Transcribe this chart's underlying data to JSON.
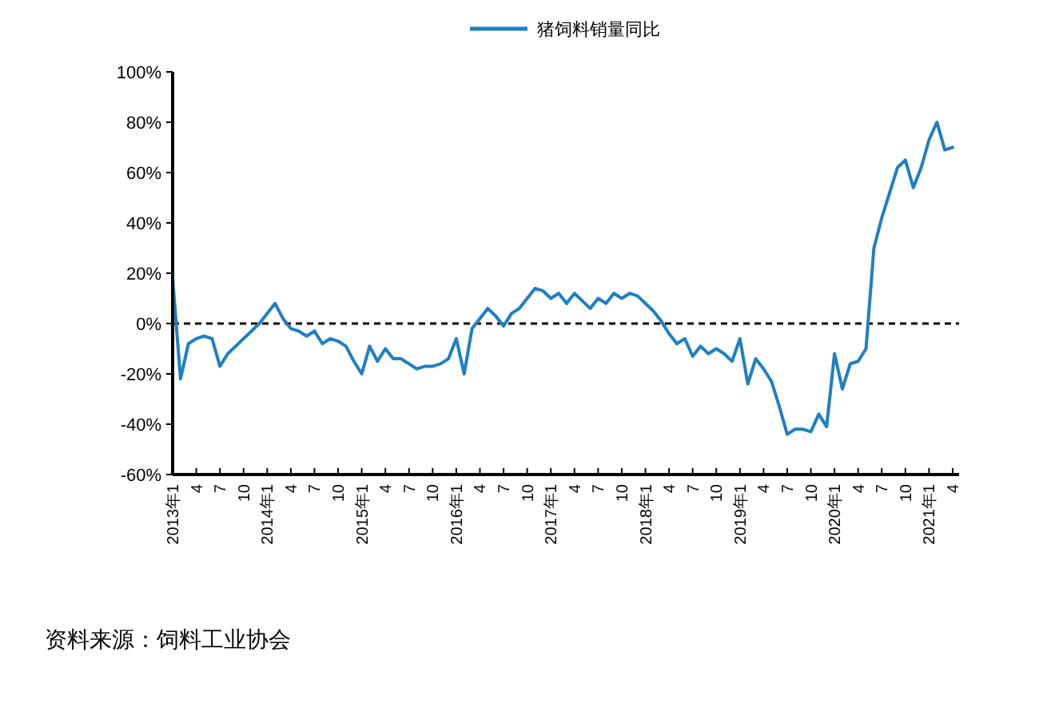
{
  "chart_data": {
    "type": "line",
    "legend": "top",
    "categories": [
      "2013年1",
      null,
      null,
      "4",
      null,
      null,
      "7",
      null,
      null,
      "10",
      null,
      null,
      "2014年1",
      null,
      null,
      "4",
      null,
      null,
      "7",
      null,
      null,
      "10",
      null,
      null,
      "2015年1",
      null,
      null,
      "4",
      null,
      null,
      "7",
      null,
      null,
      "10",
      null,
      null,
      "2016年1",
      null,
      null,
      "4",
      null,
      null,
      "7",
      null,
      null,
      "10",
      null,
      null,
      "2017年1",
      null,
      null,
      "4",
      null,
      null,
      "7",
      null,
      null,
      "10",
      null,
      null,
      "2018年1",
      null,
      null,
      "4",
      null,
      null,
      "7",
      null,
      null,
      "10",
      null,
      null,
      "2019年1",
      null,
      null,
      "4",
      null,
      null,
      "7",
      null,
      null,
      "10",
      null,
      null,
      "2020年1",
      null,
      null,
      "4",
      null,
      null,
      "7",
      null,
      null,
      "10",
      null,
      null,
      "2021年1",
      null,
      null,
      "4"
    ],
    "series": [
      {
        "name": "猪饲料销量同比",
        "color": "#1f7fc4",
        "values": [
          18,
          -22,
          -8,
          -6,
          -5,
          -6,
          -17,
          -12,
          -9,
          -6,
          -3,
          0,
          4,
          8,
          2,
          -2,
          -3,
          -5,
          -3,
          -8,
          -6,
          -7,
          -9,
          -15,
          -20,
          -9,
          -15,
          -10,
          -14,
          -14,
          -16,
          -18,
          -17,
          -17,
          -16,
          -14,
          -6,
          -20,
          -2,
          2,
          6,
          3,
          -1,
          4,
          6,
          10,
          14,
          13,
          10,
          12,
          8,
          12,
          9,
          6,
          10,
          8,
          12,
          10,
          12,
          11,
          8,
          5,
          1,
          -4,
          -8,
          -6,
          -13,
          -9,
          -12,
          -10,
          -12,
          -15,
          -6,
          -24,
          -14,
          -18,
          -23,
          -33,
          -44,
          -42,
          -42,
          -43,
          -36,
          -41,
          -12,
          -26,
          -16,
          -15,
          -10,
          30,
          42,
          52,
          62,
          65,
          54,
          62,
          73,
          80,
          69,
          70
        ]
      }
    ],
    "ylim": [
      -60,
      100
    ],
    "yticks": [
      {
        "value": -60,
        "label": "-60%"
      },
      {
        "value": -40,
        "label": "-40%"
      },
      {
        "value": -20,
        "label": "-20%"
      },
      {
        "value": 0,
        "label": "0%"
      },
      {
        "value": 20,
        "label": "20%"
      },
      {
        "value": 40,
        "label": "40%"
      },
      {
        "value": 60,
        "label": "60%"
      },
      {
        "value": 80,
        "label": "80%"
      },
      {
        "value": 100,
        "label": "100%"
      }
    ],
    "ref_lines": [
      {
        "axis": "y",
        "value": 0,
        "color": "#000000",
        "line_style": "dashed"
      }
    ],
    "annotations": [
      "资料来源：饲料工业协会"
    ]
  }
}
